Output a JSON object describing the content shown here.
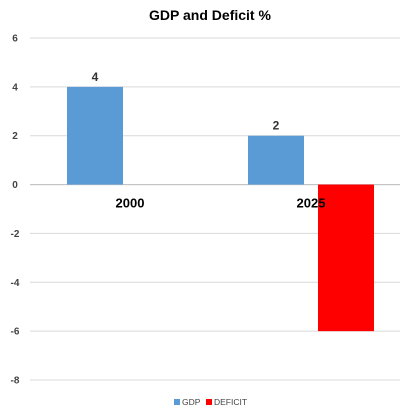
{
  "chart_data": {
    "type": "bar",
    "title": "GDP and Deficit %",
    "categories": [
      "2000",
      "2025"
    ],
    "series": [
      {
        "name": "GDP",
        "values": [
          4,
          2
        ],
        "color": "#5B9BD5"
      },
      {
        "name": "DEFICIT",
        "values": [
          null,
          -6
        ],
        "color": "#FF0000"
      }
    ],
    "data_labels": {
      "GDP": [
        "4",
        "2"
      ]
    },
    "ylim": [
      -8,
      6
    ],
    "yticks": [
      "6",
      "4",
      "2",
      "0",
      "-2",
      "-4",
      "-6",
      "-8"
    ],
    "grid": true,
    "legend": "bottom"
  }
}
